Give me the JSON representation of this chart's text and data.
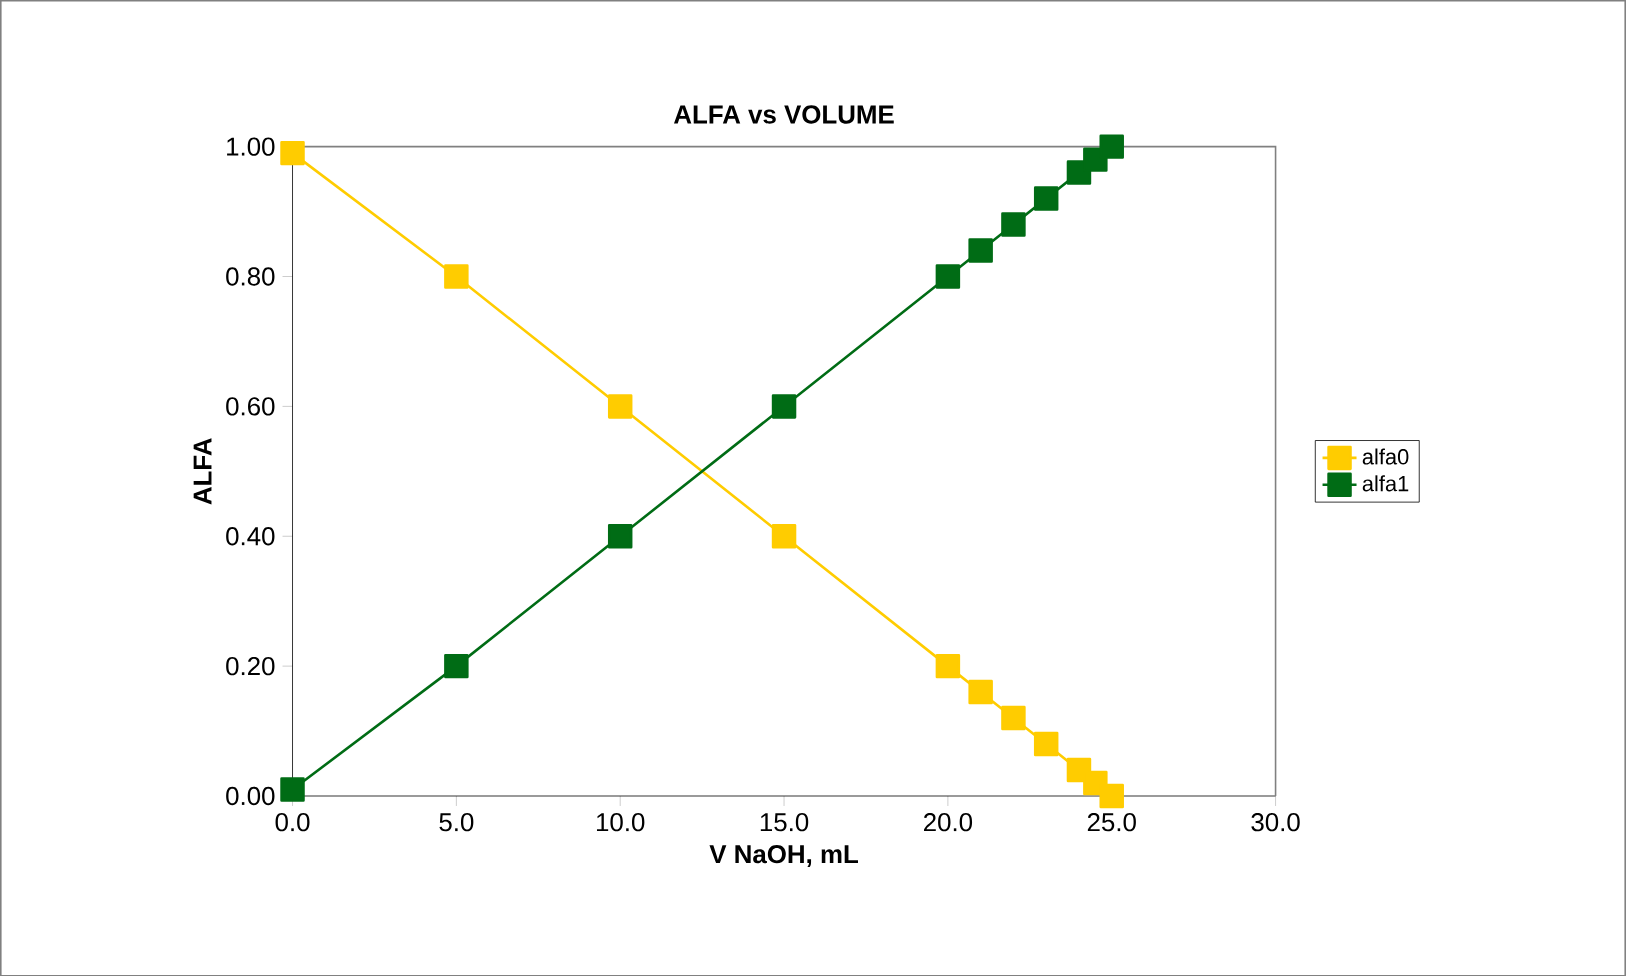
{
  "chart_data": {
    "type": "line",
    "title": "ALFA vs VOLUME",
    "xlabel": "V NaOH, mL",
    "ylabel": "ALFA",
    "x": [
      0,
      5,
      10,
      15,
      20,
      21,
      22,
      23,
      24,
      24.5,
      25
    ],
    "series": [
      {
        "name": "alfa0",
        "color": "#ffcc00",
        "values": [
          0.99,
          0.8,
          0.6,
          0.4,
          0.2,
          0.16,
          0.12,
          0.08,
          0.04,
          0.02,
          0.0
        ]
      },
      {
        "name": "alfa1",
        "color": "#006c15",
        "values": [
          0.01,
          0.2,
          0.4,
          0.6,
          0.8,
          0.84,
          0.88,
          0.92,
          0.96,
          0.98,
          1.0
        ]
      }
    ],
    "xlim": [
      0,
      30
    ],
    "ylim": [
      0,
      1
    ],
    "xticks": [
      {
        "value": 0,
        "label": "0.0"
      },
      {
        "value": 5,
        "label": "5.0"
      },
      {
        "value": 10,
        "label": "10.0"
      },
      {
        "value": 15,
        "label": "15.0"
      },
      {
        "value": 20,
        "label": "20.0"
      },
      {
        "value": 25,
        "label": "25.0"
      },
      {
        "value": 30,
        "label": "30.0"
      }
    ],
    "yticks": [
      {
        "value": 0,
        "label": "0.00"
      },
      {
        "value": 0.2,
        "label": "0.20"
      },
      {
        "value": 0.4,
        "label": "0.40"
      },
      {
        "value": 0.6,
        "label": "0.60"
      },
      {
        "value": 0.8,
        "label": "0.80"
      },
      {
        "value": 1,
        "label": "1.00"
      }
    ],
    "grid": false,
    "legend": "right",
    "marker": "square",
    "line_style": "solid"
  }
}
